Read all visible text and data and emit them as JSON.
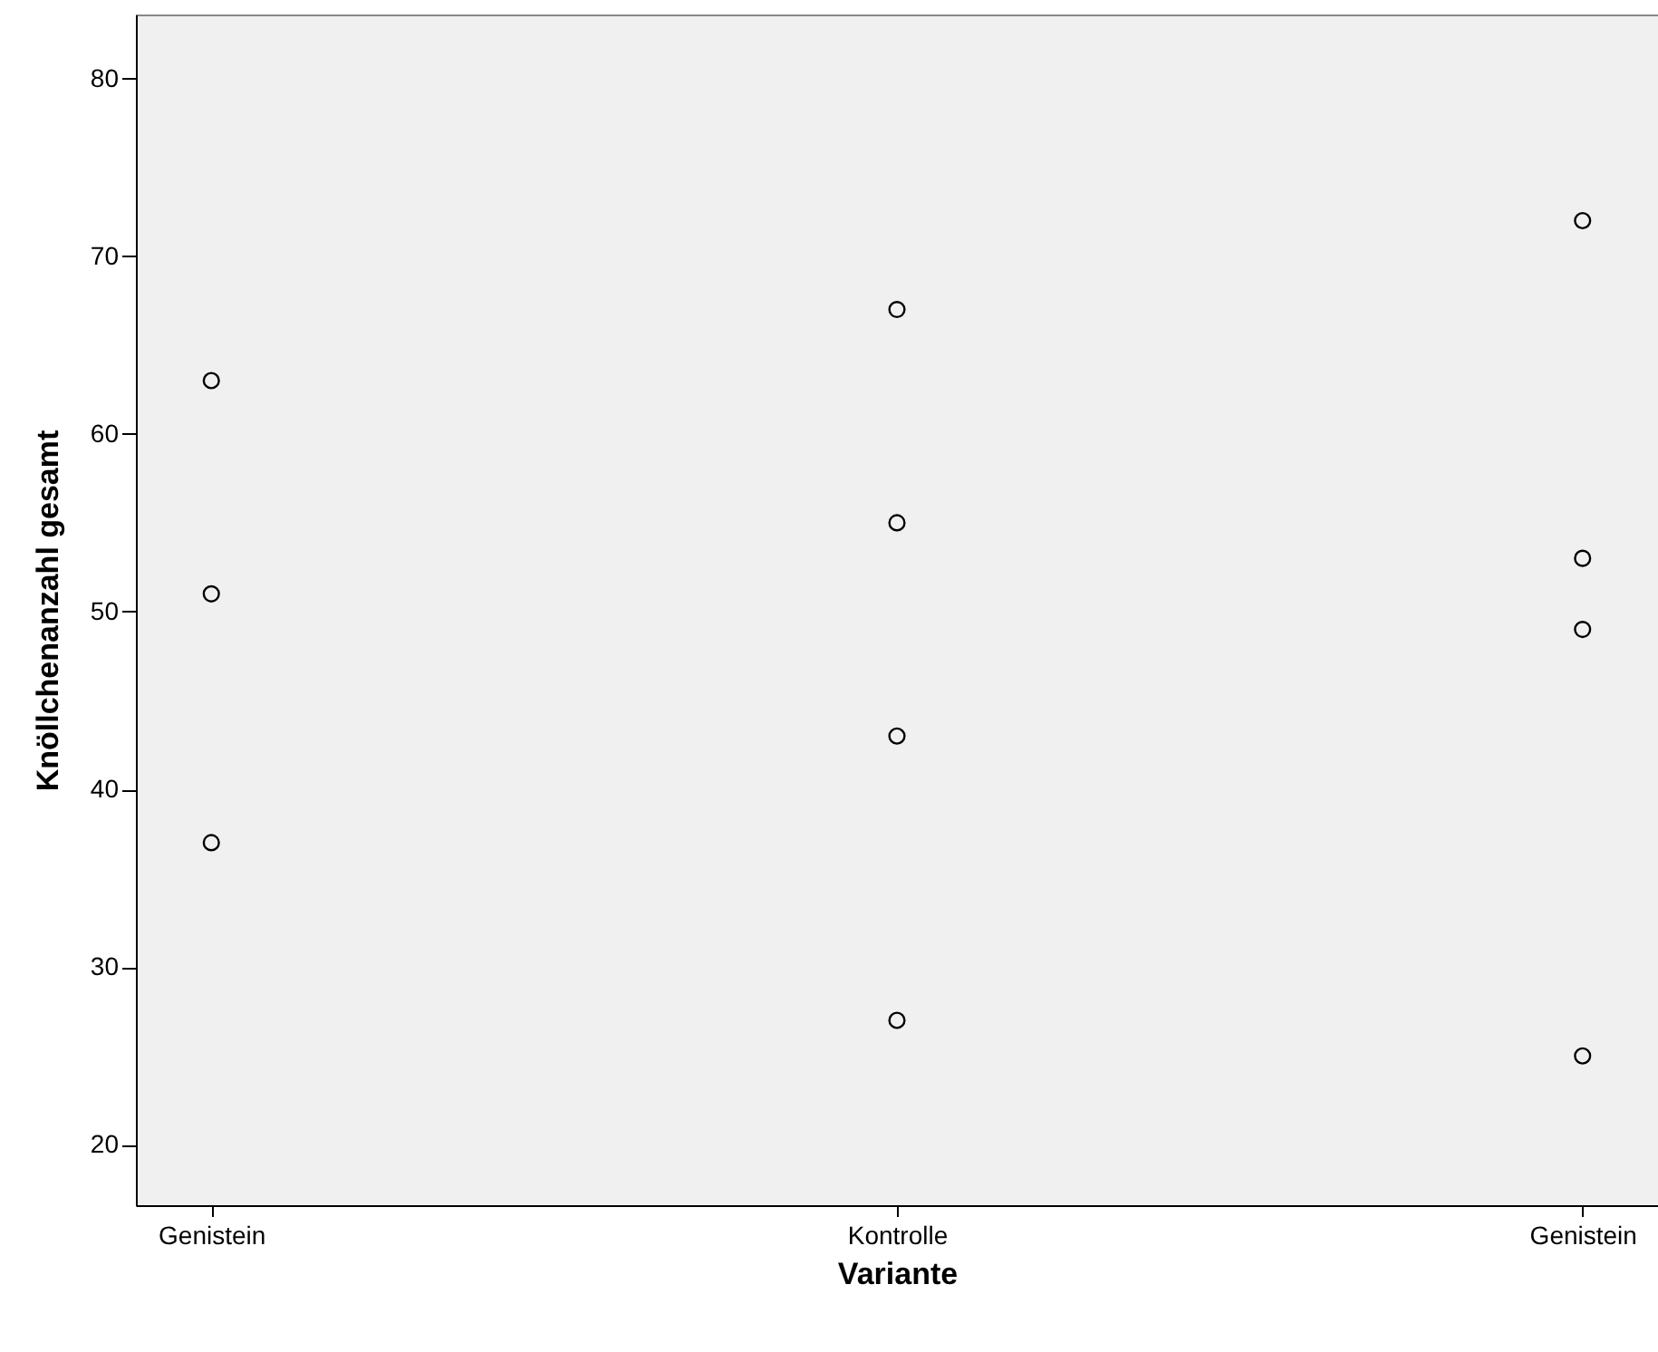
{
  "chart_data": {
    "type": "scatter",
    "xlabel": "Variante",
    "ylabel": "Knöllchenanzahl gesamt",
    "categories": [
      "Genistein",
      "Kontrolle",
      "Genistein"
    ],
    "series": [
      {
        "color": "#000000",
        "values": [
          63,
          67,
          72
        ]
      },
      {
        "color": "#000000",
        "values": [
          51,
          55,
          53
        ]
      },
      {
        "color": "#000000",
        "values": [
          37,
          43,
          49
        ]
      },
      {
        "color": "#000000",
        "values": [
          null,
          27,
          25
        ]
      }
    ],
    "ylim": [
      16.6,
      83.6
    ],
    "yticks": [
      20,
      30,
      40,
      50,
      60,
      70,
      80
    ],
    "marker": "circle",
    "grid": false
  }
}
